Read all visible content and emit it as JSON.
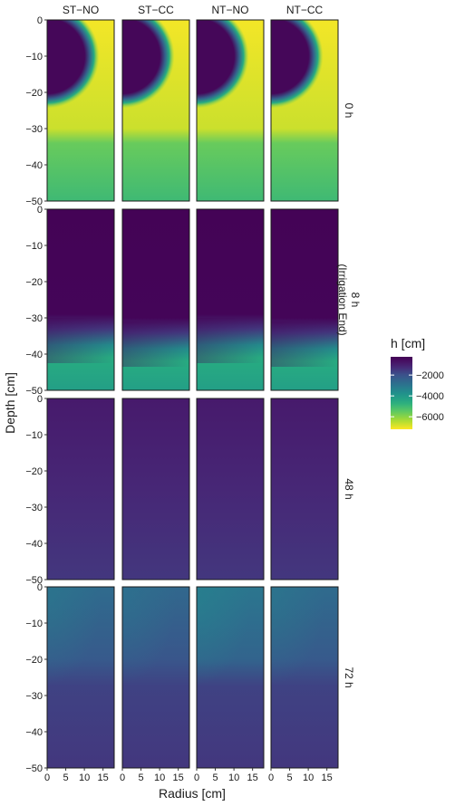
{
  "chart_data": {
    "type": "heatmap",
    "description_note": "",
    "columns": [
      "ST−NO",
      "ST−CC",
      "NT−NO",
      "NT−CC"
    ],
    "rows": [
      "0 h",
      "8 h\n(Irrigation End)",
      "48 h",
      "72 h"
    ],
    "xlabel": "Radius [cm]",
    "ylabel": "Depth [cm]",
    "x_ticks": [
      "0",
      "5",
      "10",
      "15"
    ],
    "x_tick_values": [
      0,
      5,
      10,
      15
    ],
    "xlim": [
      0,
      18
    ],
    "y_ticks": [
      "0",
      "−10",
      "−20",
      "−30",
      "−40",
      "−50"
    ],
    "y_tick_values": [
      0,
      -10,
      -20,
      -30,
      -40,
      -50
    ],
    "ylim": [
      -50,
      0
    ],
    "legend": {
      "title": "h [cm]",
      "tick_labels": [
        "−2000",
        "−4000",
        "−6000"
      ],
      "tick_values": [
        -2000,
        -4000,
        -6000
      ],
      "range": [
        -7200,
        -250
      ],
      "colors": [
        "#440154",
        "#3b528b",
        "#21908c",
        "#5dc963",
        "#fde725"
      ],
      "placement": "right"
    },
    "panels": [
      {
        "time": "0 h",
        "type": "dry-bulb",
        "h_bulb": -400,
        "bulb_radius": 11,
        "bulb_depth": -10,
        "h_upper": -7100,
        "h_lower": -5000,
        "layer_boundary": -31
      },
      {
        "time": "8 h",
        "type": "wetting-front",
        "columns_front_depth": [
          -29,
          -30,
          -29,
          -30
        ],
        "h_wet": -300,
        "h_dry_deep": -4800
      },
      {
        "time": "48 h",
        "type": "uniform",
        "h_top": -900,
        "h_bottom": -1500
      },
      {
        "time": "72 h",
        "type": "redistribution",
        "h_top": -2700,
        "h_bottom": -1500,
        "columns_top_h": [
          -2700,
          -2600,
          -3000,
          -2700
        ]
      }
    ]
  }
}
